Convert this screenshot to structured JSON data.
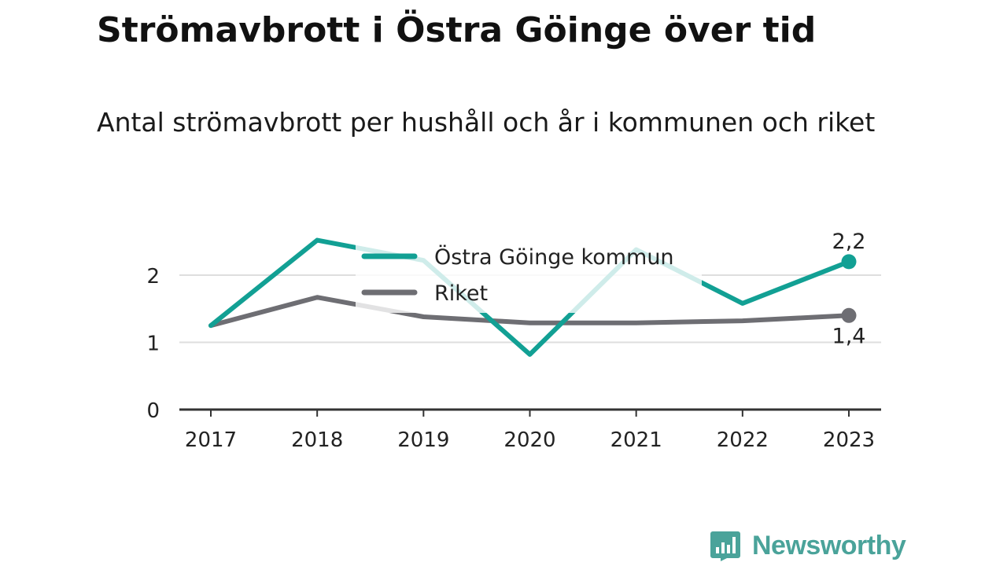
{
  "title": "Strömavbrott i Östra Göinge över tid",
  "subtitle": "Antal strömavbrott per hushåll och år i kommunen och riket",
  "brand": {
    "name": "Newsworthy",
    "color": "#4aa39a"
  },
  "chart_data": {
    "type": "line",
    "x": [
      "2017",
      "2018",
      "2019",
      "2020",
      "2021",
      "2022",
      "2023"
    ],
    "series": [
      {
        "name": "Östra Göinge kommun",
        "color": "#12a094",
        "values": [
          1.25,
          2.52,
          2.22,
          0.82,
          2.38,
          1.58,
          2.2
        ],
        "end_label": "2,2"
      },
      {
        "name": "Riket",
        "color": "#6e6e73",
        "values": [
          1.25,
          1.67,
          1.38,
          1.29,
          1.29,
          1.32,
          1.4
        ],
        "end_label": "1,4"
      }
    ],
    "y_ticks": [
      "0",
      "1",
      "2"
    ],
    "ylim": [
      0,
      2.6
    ],
    "grid": true,
    "legend_position": "top-center",
    "xlabel": "",
    "ylabel": ""
  }
}
